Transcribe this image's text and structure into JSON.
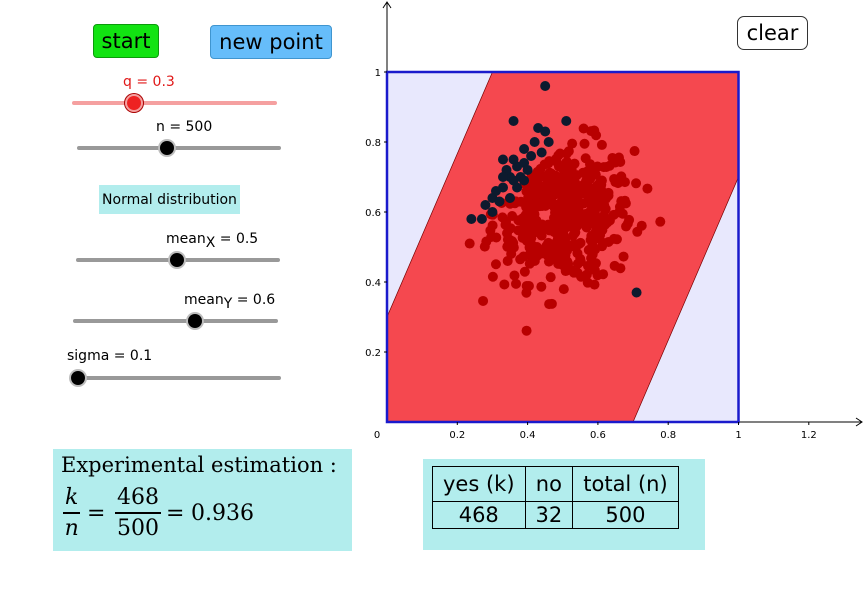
{
  "controls": {
    "start_label": "start",
    "new_point_label": "new point",
    "clear_label": "clear",
    "normal_distribution_label": "Normal distribution"
  },
  "sliders": {
    "q": {
      "prefix": "q = ",
      "value": 0.3,
      "min": 0,
      "max": 1,
      "color": "#ee2222"
    },
    "n": {
      "prefix": "n = ",
      "value": 500,
      "min": 0,
      "max": 1000
    },
    "meanX": {
      "base": "mean",
      "sub": "X",
      "suffix": " = ",
      "value": 0.5,
      "min": 0,
      "max": 1
    },
    "meanY": {
      "base": "mean",
      "sub": "Y",
      "suffix": " = ",
      "value": 0.6,
      "min": 0,
      "max": 1
    },
    "sigma": {
      "prefix": "sigma = ",
      "value": 0.1,
      "min": 0.1,
      "max": 1
    }
  },
  "estimation": {
    "title": "Experimental estimation :",
    "k_symbol": "k",
    "n_symbol": "n",
    "k": "468",
    "n": "500",
    "result": "0.936"
  },
  "results_table": {
    "headers": [
      "yes (k)",
      "no",
      "total (n)"
    ],
    "values": [
      "468",
      "32",
      "500"
    ]
  },
  "chart_data": {
    "type": "scatter",
    "x_ticks": [
      "0",
      "0.2",
      "0.4",
      "0.6",
      "0.8",
      "1",
      "1.2"
    ],
    "y_ticks": [
      "0.2",
      "0.4",
      "0.6",
      "0.8",
      "1"
    ],
    "xlim": [
      0,
      1.3
    ],
    "ylim": [
      0,
      1.05
    ],
    "unit_square": [
      0,
      1
    ],
    "band_half_width": 0.3,
    "colors": {
      "square_fill": "#e8e8fd",
      "square_border": "#1a1acc",
      "band": "#f5484f",
      "inside_point": "#b80000",
      "outside_point": "#0d1a2e"
    },
    "points_total": 500,
    "points_inside": 468,
    "points_outside": 32,
    "outside_points": [
      [
        0.45,
        0.96
      ],
      [
        0.51,
        0.86
      ],
      [
        0.36,
        0.86
      ],
      [
        0.43,
        0.84
      ],
      [
        0.45,
        0.83
      ],
      [
        0.39,
        0.78
      ],
      [
        0.33,
        0.75
      ],
      [
        0.37,
        0.73
      ],
      [
        0.39,
        0.74
      ],
      [
        0.35,
        0.7
      ],
      [
        0.36,
        0.69
      ],
      [
        0.33,
        0.67
      ],
      [
        0.3,
        0.64
      ],
      [
        0.28,
        0.62
      ],
      [
        0.24,
        0.58
      ],
      [
        0.27,
        0.58
      ],
      [
        0.31,
        0.66
      ],
      [
        0.38,
        0.7
      ],
      [
        0.34,
        0.72
      ],
      [
        0.41,
        0.76
      ],
      [
        0.4,
        0.72
      ],
      [
        0.32,
        0.63
      ],
      [
        0.36,
        0.75
      ],
      [
        0.3,
        0.6
      ],
      [
        0.42,
        0.8
      ],
      [
        0.37,
        0.67
      ],
      [
        0.46,
        0.8
      ],
      [
        0.35,
        0.64
      ],
      [
        0.44,
        0.77
      ],
      [
        0.33,
        0.7
      ],
      [
        0.39,
        0.69
      ],
      [
        0.71,
        0.37
      ]
    ]
  }
}
